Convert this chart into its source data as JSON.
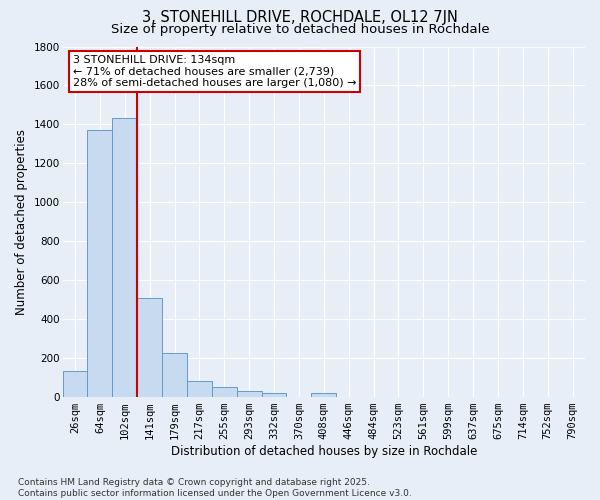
{
  "title": "3, STONEHILL DRIVE, ROCHDALE, OL12 7JN",
  "subtitle": "Size of property relative to detached houses in Rochdale",
  "xlabel": "Distribution of detached houses by size in Rochdale",
  "ylabel": "Number of detached properties",
  "bar_labels": [
    "26sqm",
    "64sqm",
    "102sqm",
    "141sqm",
    "179sqm",
    "217sqm",
    "255sqm",
    "293sqm",
    "332sqm",
    "370sqm",
    "408sqm",
    "446sqm",
    "484sqm",
    "523sqm",
    "561sqm",
    "599sqm",
    "637sqm",
    "675sqm",
    "714sqm",
    "752sqm",
    "790sqm"
  ],
  "bar_values": [
    130,
    1370,
    1430,
    505,
    225,
    80,
    48,
    28,
    20,
    0,
    20,
    0,
    0,
    0,
    0,
    0,
    0,
    0,
    0,
    0,
    0
  ],
  "bar_color": "#c8daf0",
  "bar_edge_color": "#6699cc",
  "vline_color": "#cc0000",
  "vline_x_index": 3,
  "annotation_line1": "3 STONEHILL DRIVE: 134sqm",
  "annotation_line2": "← 71% of detached houses are smaller (2,739)",
  "annotation_line3": "28% of semi-detached houses are larger (1,080) →",
  "annotation_box_color": "#ffffff",
  "annotation_box_edge": "#cc0000",
  "ylim": [
    0,
    1800
  ],
  "yticks": [
    0,
    200,
    400,
    600,
    800,
    1000,
    1200,
    1400,
    1600,
    1800
  ],
  "background_color": "#e8eef8",
  "grid_color": "#ffffff",
  "footer": "Contains HM Land Registry data © Crown copyright and database right 2025.\nContains public sector information licensed under the Open Government Licence v3.0.",
  "title_fontsize": 10.5,
  "subtitle_fontsize": 9.5,
  "axis_label_fontsize": 8.5,
  "tick_fontsize": 7.5,
  "annotation_fontsize": 8.0,
  "footer_fontsize": 6.5
}
